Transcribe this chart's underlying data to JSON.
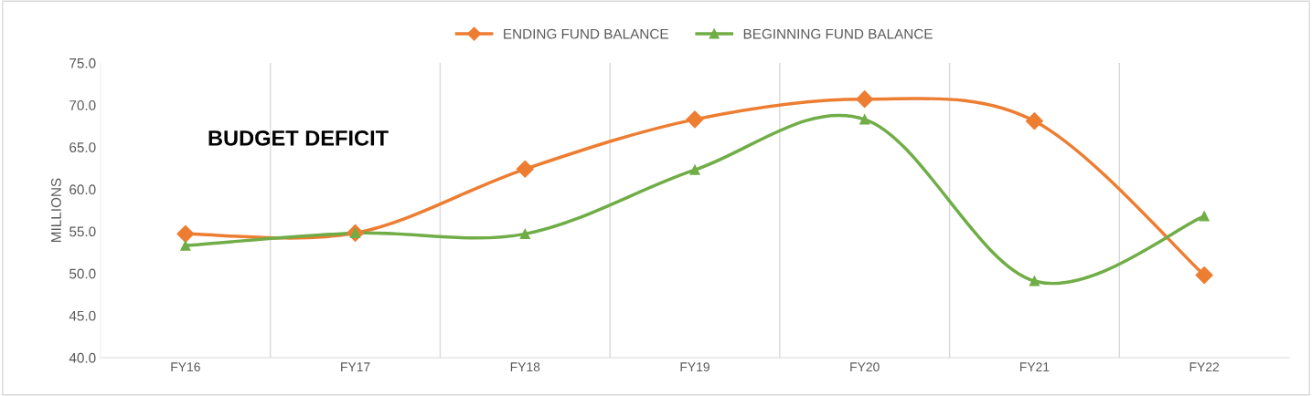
{
  "chart_data": {
    "type": "line",
    "ylabel": "MILLIONS",
    "categories": [
      "FY16",
      "FY17",
      "FY18",
      "FY19",
      "FY20",
      "FY21",
      "FY22"
    ],
    "series": [
      {
        "name": "ENDING FUND BALANCE",
        "color": "#ed7d31",
        "marker": "diamond",
        "values": [
          54.7,
          54.8,
          62.4,
          68.3,
          70.7,
          68.1,
          49.8
        ]
      },
      {
        "name": "BEGINNING FUND BALANCE",
        "color": "#70ad47",
        "marker": "triangle",
        "values": [
          53.3,
          54.8,
          54.7,
          62.3,
          68.3,
          49.1,
          56.8
        ]
      }
    ],
    "ylim": [
      40,
      75
    ],
    "yticks": [
      {
        "value": 40,
        "label": "40.0"
      },
      {
        "value": 45,
        "label": "45.0"
      },
      {
        "value": 50,
        "label": "50.0"
      },
      {
        "value": 55,
        "label": "55.0"
      },
      {
        "value": 60,
        "label": "60.0"
      },
      {
        "value": 65,
        "label": "65.0"
      },
      {
        "value": 70,
        "label": "70.0"
      },
      {
        "value": 75,
        "label": "75.0"
      }
    ],
    "grid": "x",
    "legend": "top",
    "line_style": "solid",
    "annotations": [
      {
        "text": "BUDGET DEFICIT"
      }
    ]
  }
}
